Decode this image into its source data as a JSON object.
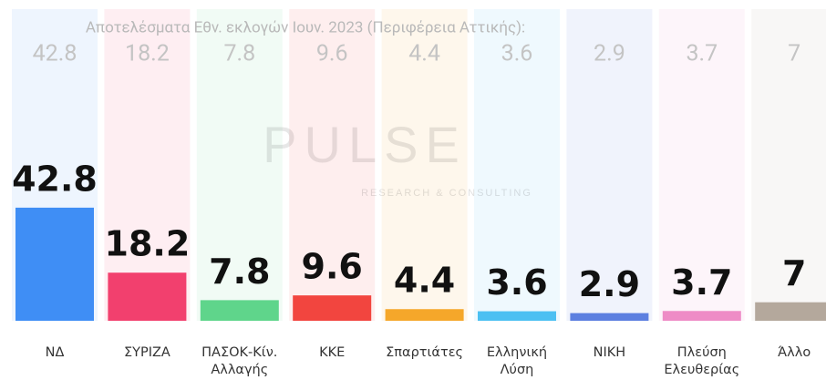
{
  "chart_data": {
    "type": "bar",
    "title": "Αποτελέσματα Εθν. εκλογών Ιουν. 2023 (Περιφέρεια Αττικής):",
    "categories": [
      "ΝΔ",
      "ΣΥΡΙΖΑ",
      "ΠΑΣΟΚ-Κίν. Αλλαγής",
      "ΚΚΕ",
      "Σπαρτιάτες",
      "Ελληνική Λύση",
      "ΝΙΚΗ",
      "Πλεύση Ελευθερίας",
      "Άλλο"
    ],
    "values": [
      42.8,
      18.2,
      7.8,
      9.6,
      4.4,
      3.6,
      2.9,
      3.7,
      7
    ],
    "colors": [
      "#3f8ef5",
      "#f2406e",
      "#5fd58b",
      "#f2453f",
      "#f5a72a",
      "#4cc0f2",
      "#5c7fe0",
      "#ee8cc6",
      "#b4a89c"
    ],
    "watermark": {
      "name": "PULSE",
      "tagline": "RESEARCH & CONSULTING"
    }
  }
}
